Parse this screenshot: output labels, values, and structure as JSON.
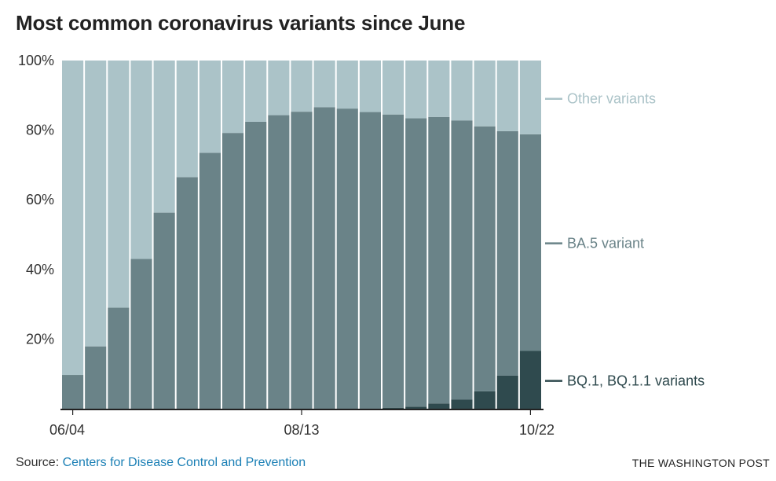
{
  "title": "Most common coronavirus variants since June",
  "source": {
    "prefix": "Source: ",
    "link_text": "Centers for Disease Control and Prevention"
  },
  "brand": "THE WASHINGTON POST",
  "colors": {
    "other": "#abc3c8",
    "ba5": "#6a8388",
    "bq1": "#2f4a4e",
    "axis": "#222222",
    "link": "#1a7fb5"
  },
  "chart_data": {
    "type": "bar",
    "stacked": true,
    "y_tick_labels": [
      "100%",
      "80%",
      "60%",
      "40%",
      "20%"
    ],
    "y_ticks": [
      100,
      80,
      60,
      40,
      20
    ],
    "ylim": [
      0,
      100
    ],
    "x_tick_labels": [
      {
        "label": "06/04",
        "index": 0
      },
      {
        "label": "08/13",
        "index": 10
      },
      {
        "label": "10/22",
        "index": 20
      }
    ],
    "series": [
      {
        "name": "BQ.1, BQ.1.1 variants",
        "key": "bq1",
        "values": [
          0,
          0,
          0,
          0,
          0,
          0,
          0,
          0,
          0,
          0,
          0,
          0,
          0,
          0,
          0.3,
          0.6,
          1.5,
          2.6,
          5.0,
          9.5,
          16.6
        ]
      },
      {
        "name": "BA.5 variant",
        "key": "ba5",
        "values": [
          9.7,
          17.9,
          29.0,
          43.0,
          56.3,
          66.5,
          73.5,
          79.2,
          82.4,
          84.3,
          85.3,
          86.6,
          86.2,
          85.2,
          84.2,
          82.8,
          82.3,
          80.2,
          76.1,
          70.2,
          62.2
        ]
      },
      {
        "name": "Other variants",
        "key": "other",
        "values": [
          90.3,
          82.1,
          71.0,
          57.0,
          43.7,
          33.5,
          26.5,
          20.8,
          17.6,
          15.7,
          14.7,
          13.4,
          13.8,
          14.8,
          15.5,
          16.6,
          16.2,
          17.2,
          18.9,
          20.3,
          21.2
        ]
      }
    ],
    "legend": [
      {
        "label": "Other variants",
        "key": "other",
        "at": 89
      },
      {
        "label": "BA.5 variant",
        "key": "ba5",
        "at": 47.5
      },
      {
        "label": "BQ.1, BQ.1.1 variants",
        "key": "bq1",
        "at": 8
      }
    ],
    "grid": false
  }
}
